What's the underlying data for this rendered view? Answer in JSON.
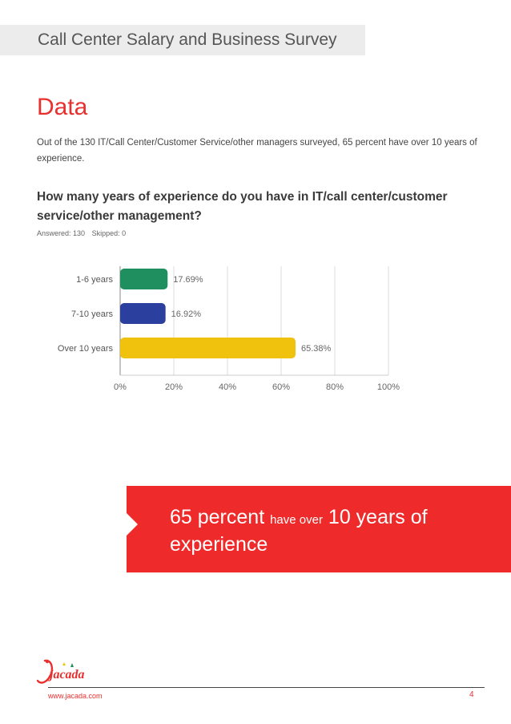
{
  "header": {
    "title": "Call Center Salary and Business Survey"
  },
  "section": {
    "title": "Data",
    "intro": "Out of the 130 IT/Call Center/Customer Service/other managers surveyed, 65 percent have over 10 years of experience."
  },
  "question": {
    "text": "How many years of experience do you have in IT/call center/customer service/other management?",
    "answered": "Answered: 130",
    "skipped": "Skipped: 0"
  },
  "chart_data": {
    "type": "bar",
    "orientation": "horizontal",
    "categories": [
      "1-6 years",
      "7-10 years",
      "Over 10 years"
    ],
    "values": [
      17.69,
      16.92,
      65.38
    ],
    "value_labels": [
      "17.69%",
      "16.92%",
      "65.38%"
    ],
    "colors": [
      "#1f8f5f",
      "#2a3f9e",
      "#f0c20e"
    ],
    "x_ticks": [
      "0%",
      "20%",
      "40%",
      "60%",
      "80%",
      "100%"
    ],
    "xlim": [
      0,
      100
    ],
    "grid": true
  },
  "callout": {
    "part1": "65 percent",
    "part2": "have over",
    "part3": "10 years of experience"
  },
  "footer": {
    "logo_text": "jacada",
    "url": "www.jacada.com",
    "page": "4"
  }
}
